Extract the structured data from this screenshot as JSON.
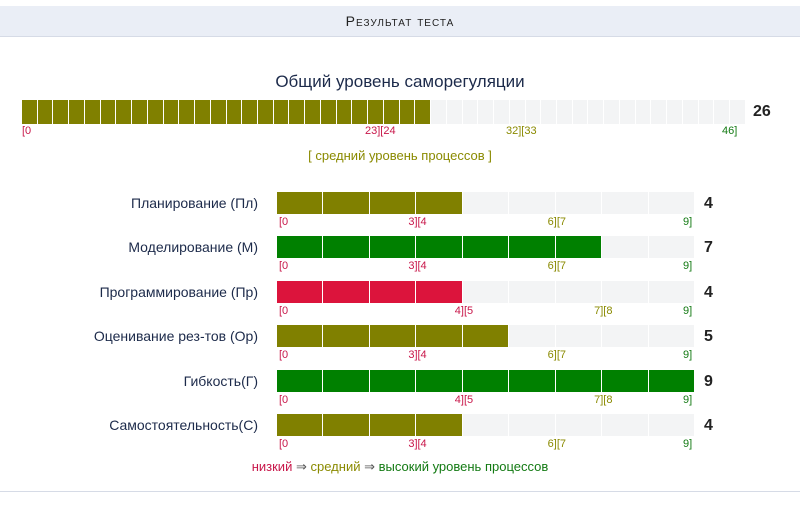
{
  "header": {
    "title": "Результат теста"
  },
  "overall": {
    "title": "Общий уровень саморегуляции",
    "value": 26,
    "max": 46,
    "score_text": "26",
    "color": "#808000",
    "ticks": {
      "t0": "[0",
      "t1": "23][24",
      "t2": "32][33",
      "t3": "46]"
    },
    "level_text": "[ средний уровень процессов ]"
  },
  "scales": [
    {
      "label": "Планирование (Пл)",
      "value": 4,
      "max": 9,
      "score_text": "4",
      "color": "#808000",
      "ticks": {
        "t0": "[0",
        "t1": "3][4",
        "t2": "6][7",
        "t3": "9]"
      }
    },
    {
      "label": "Моделирование (М)",
      "value": 7,
      "max": 9,
      "score_text": "7",
      "color": "#008000",
      "ticks": {
        "t0": "[0",
        "t1": "3][4",
        "t2": "6][7",
        "t3": "9]"
      }
    },
    {
      "label": "Программирование (Пр)",
      "value": 4,
      "max": 9,
      "score_text": "4",
      "color": "#dc143c",
      "ticks": {
        "t0": "[0",
        "t1": "4][5",
        "t2": "7][8",
        "t3": "9]"
      }
    },
    {
      "label": "Оценивание рез-тов (Ор)",
      "value": 5,
      "max": 9,
      "score_text": "5",
      "color": "#808000",
      "ticks": {
        "t0": "[0",
        "t1": "3][4",
        "t2": "6][7",
        "t3": "9]"
      }
    },
    {
      "label": "Гибкость(Г)",
      "value": 9,
      "max": 9,
      "score_text": "9",
      "color": "#008000",
      "ticks": {
        "t0": "[0",
        "t1": "4][5",
        "t2": "7][8",
        "t3": "9]"
      }
    },
    {
      "label": "Самостоятельность(С)",
      "value": 4,
      "max": 9,
      "score_text": "4",
      "color": "#808000",
      "ticks": {
        "t0": "[0",
        "t1": "3][4",
        "t2": "6][7",
        "t3": "9]"
      }
    }
  ],
  "legend": {
    "low": "низкий",
    "arrow": "⇒",
    "mid": "средний",
    "high": "высокий уровень процессов"
  }
}
